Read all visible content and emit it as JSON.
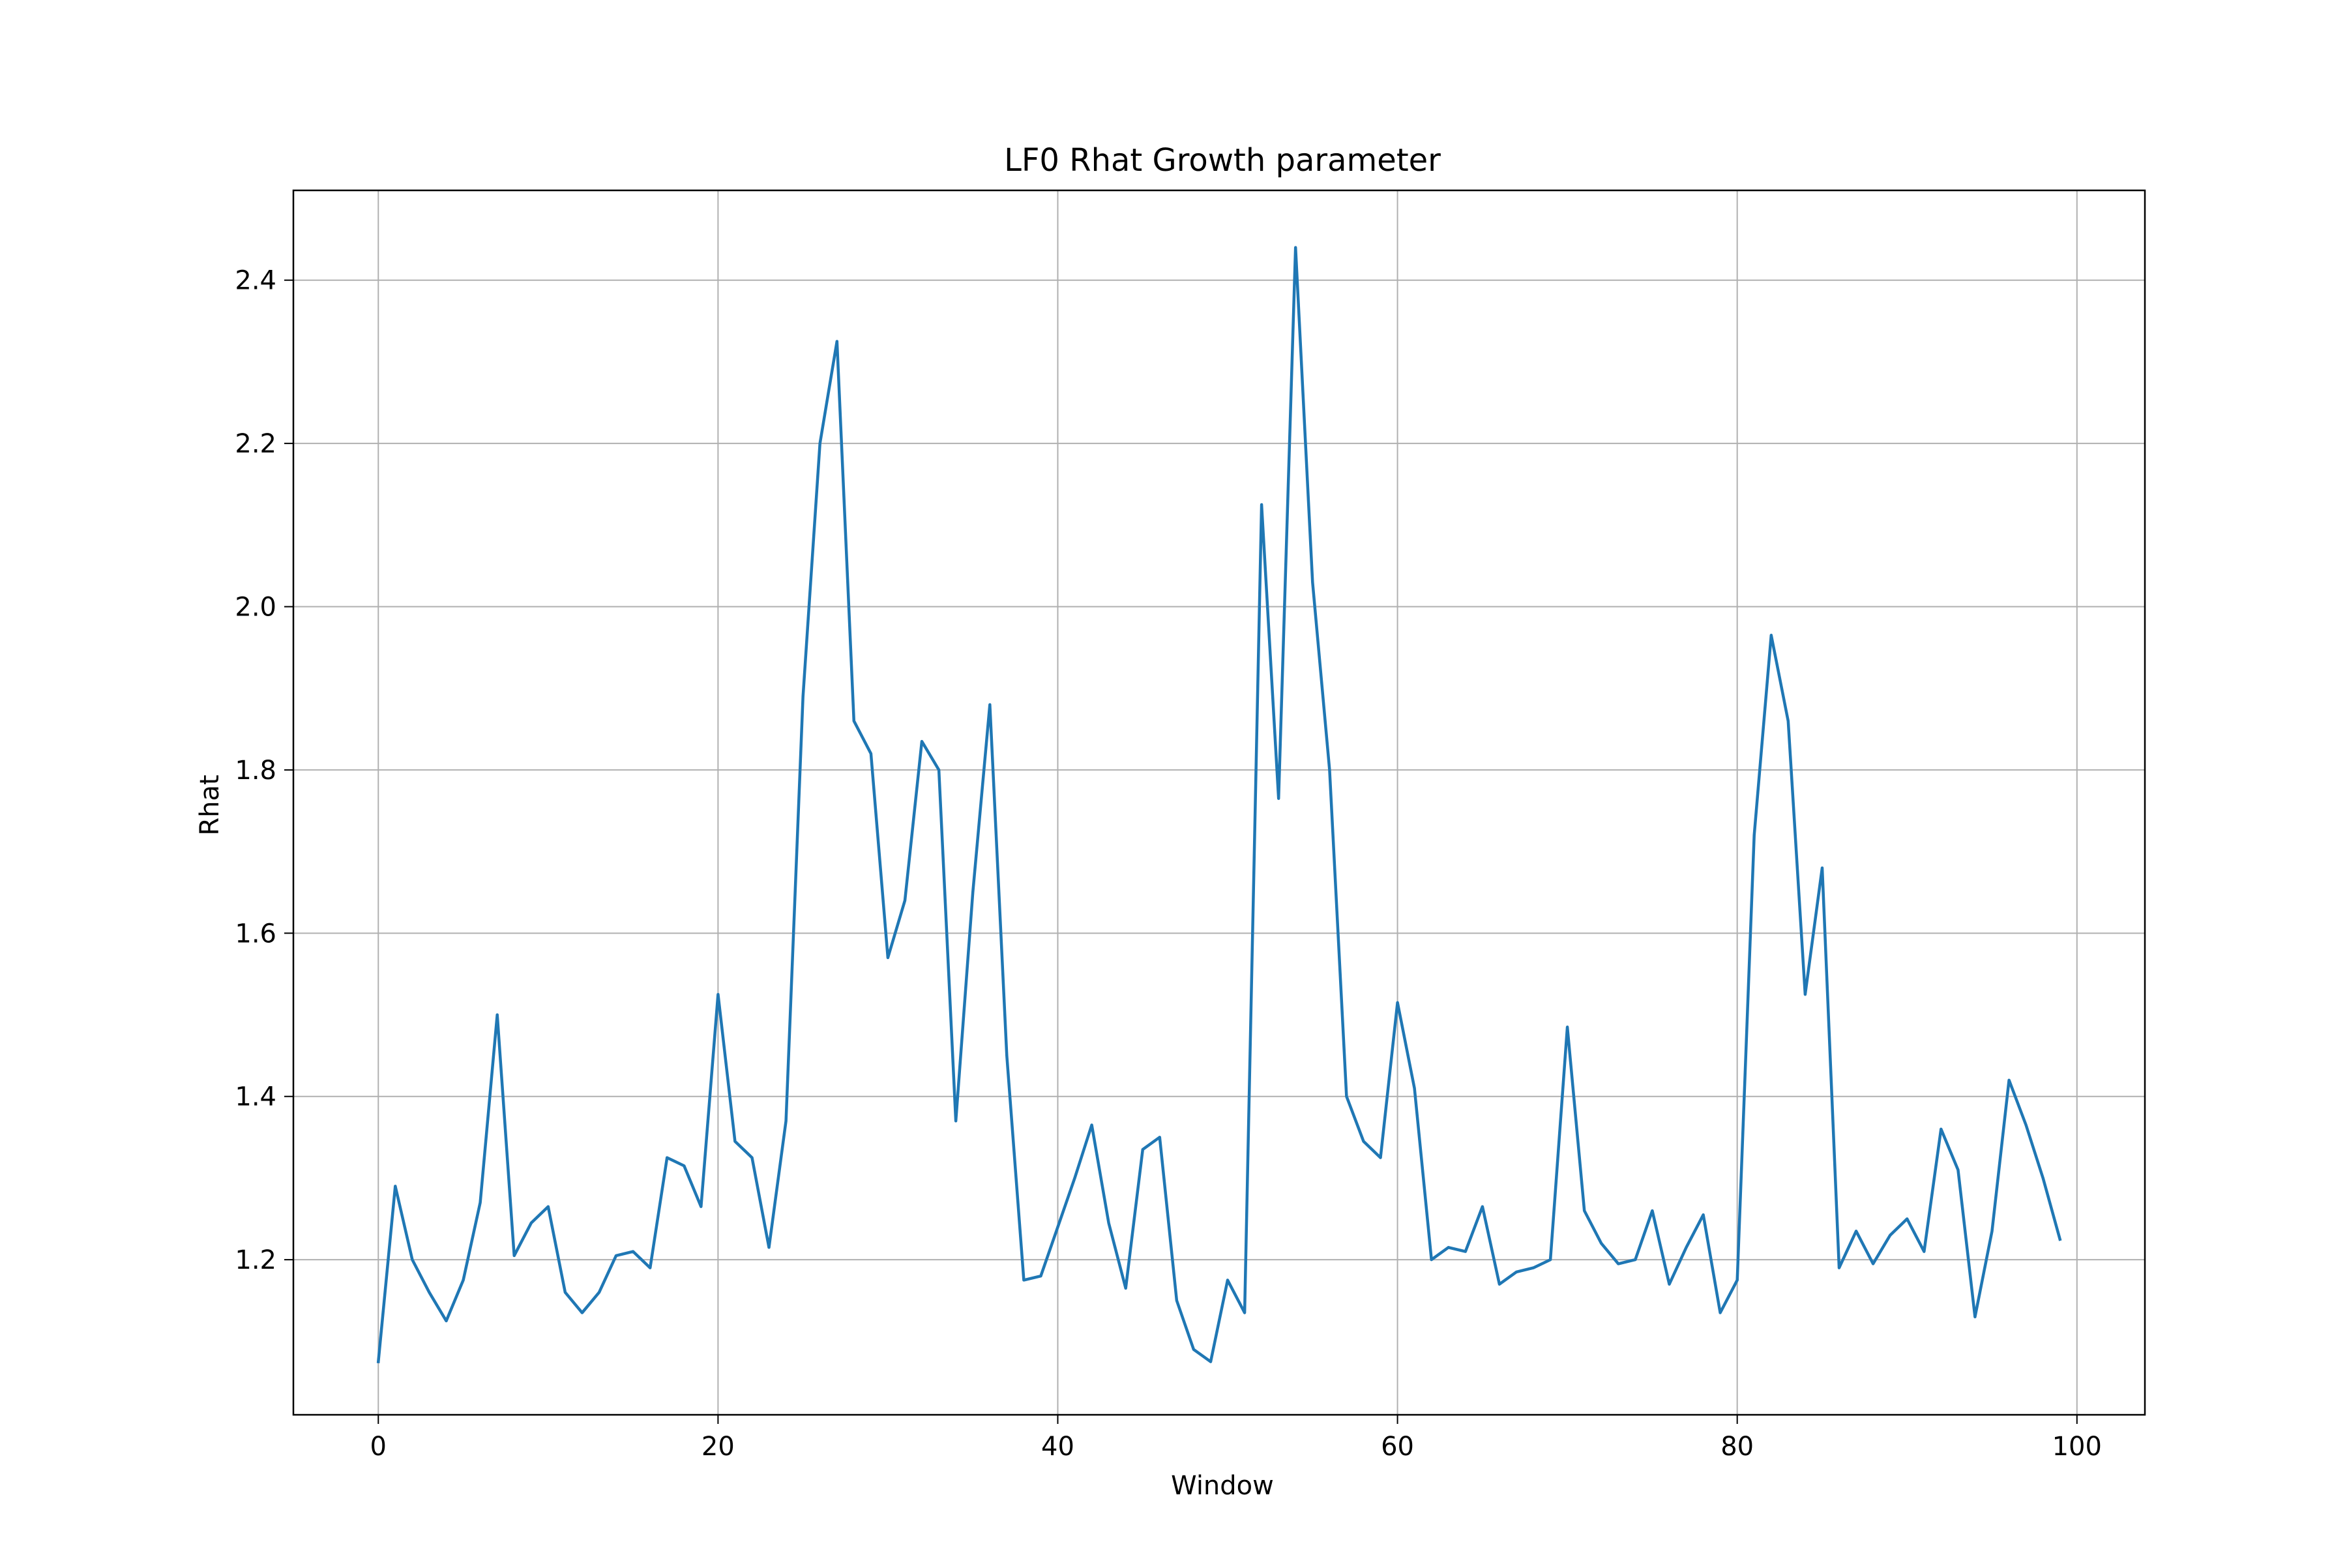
{
  "colors": {
    "line": "#1f77b4",
    "grid": "#b0b0b0",
    "axes": "#000000",
    "background": "#ffffff"
  },
  "chart_data": {
    "type": "line",
    "title": "LF0 Rhat Growth parameter",
    "xlabel": "Window",
    "ylabel": "Rhat",
    "xlim": [
      -5,
      104
    ],
    "ylim": [
      1.01,
      2.51
    ],
    "grid": true,
    "legend": "none",
    "xticks": [
      0,
      20,
      40,
      60,
      80,
      100
    ],
    "xtick_labels": [
      "0",
      "20",
      "40",
      "60",
      "80",
      "100"
    ],
    "yticks": [
      1.2,
      1.4,
      1.6,
      1.8,
      2.0,
      2.2,
      2.4
    ],
    "ytick_labels": [
      "1.2",
      "1.4",
      "1.6",
      "1.8",
      "2.0",
      "2.2",
      "2.4"
    ],
    "series": [
      {
        "x": [
          0,
          1,
          2,
          3,
          4,
          5,
          6,
          7,
          8,
          9,
          10,
          11,
          12,
          13,
          14,
          15,
          16,
          17,
          18,
          19,
          20,
          21,
          22,
          23,
          24,
          25,
          26,
          27,
          28,
          29,
          30,
          31,
          32,
          33,
          34,
          35,
          36,
          37,
          38,
          39,
          40,
          41,
          42,
          43,
          44,
          45,
          46,
          47,
          48,
          49,
          50,
          51,
          52,
          53,
          54,
          55,
          56,
          57,
          58,
          59,
          60,
          61,
          62,
          63,
          64,
          65,
          66,
          67,
          68,
          69,
          70,
          71,
          72,
          73,
          74,
          75,
          76,
          77,
          78,
          79,
          80,
          81,
          82,
          83,
          84,
          85,
          86,
          87,
          88,
          89,
          90,
          91,
          92,
          93,
          94,
          95,
          96,
          97,
          98,
          99
        ],
        "values": [
          1.075,
          1.29,
          1.2,
          1.16,
          1.125,
          1.175,
          1.27,
          1.5,
          1.205,
          1.245,
          1.265,
          1.16,
          1.135,
          1.16,
          1.205,
          1.21,
          1.19,
          1.325,
          1.315,
          1.265,
          1.525,
          1.345,
          1.325,
          1.215,
          1.37,
          1.89,
          2.2,
          2.325,
          1.86,
          1.82,
          1.57,
          1.64,
          1.835,
          1.8,
          1.37,
          1.65,
          1.88,
          1.45,
          1.175,
          1.18,
          1.24,
          1.3,
          1.365,
          1.245,
          1.165,
          1.335,
          1.35,
          1.15,
          1.09,
          1.075,
          1.175,
          1.135,
          2.125,
          1.765,
          2.44,
          2.03,
          1.8,
          1.4,
          1.345,
          1.325,
          1.515,
          1.41,
          1.2,
          1.215,
          1.21,
          1.265,
          1.17,
          1.185,
          1.19,
          1.2,
          1.485,
          1.26,
          1.22,
          1.195,
          1.2,
          1.26,
          1.17,
          1.215,
          1.255,
          1.135,
          1.175,
          1.72,
          1.965,
          1.86,
          1.525,
          1.68,
          1.19,
          1.235,
          1.195,
          1.23,
          1.25,
          1.21,
          1.36,
          1.31,
          1.13,
          1.235,
          1.42,
          1.365,
          1.3,
          1.225
        ]
      }
    ]
  }
}
